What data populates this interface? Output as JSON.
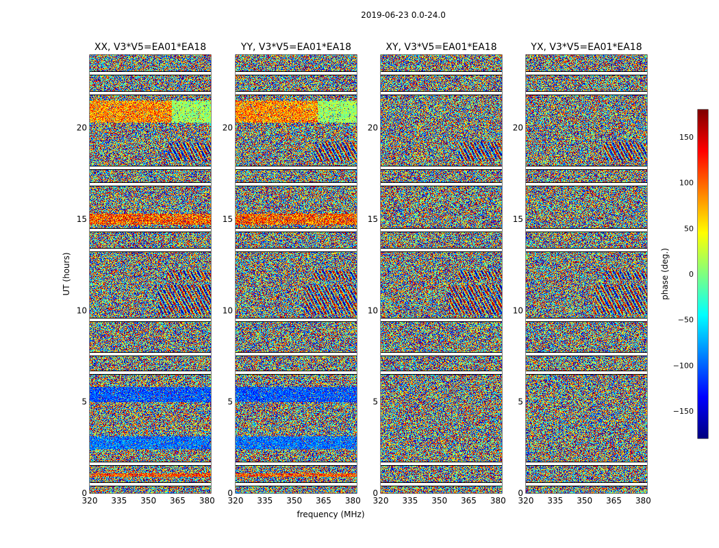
{
  "chart_data": {
    "type": "heatmap",
    "suptitle": "2019-06-23 0.0-24.0",
    "xlabel": "frequency (MHz)",
    "ylabel": "UT (hours)",
    "colorbar_label": "phase (deg.)",
    "xlim": [
      320,
      382
    ],
    "ylim": [
      0,
      24
    ],
    "xticks": [
      320,
      335,
      350,
      365,
      380
    ],
    "yticks": [
      0,
      5,
      10,
      15,
      20
    ],
    "clim": [
      -180,
      180
    ],
    "colorbar_ticks": [
      150,
      100,
      50,
      0,
      -50,
      -100,
      -150
    ],
    "colormap": "jet",
    "panels": [
      {
        "title": "XX, V3*V5=EA01*EA18",
        "pol": "XX"
      },
      {
        "title": "YY, V3*V5=EA01*EA18",
        "pol": "YY"
      },
      {
        "title": "XY, V3*V5=EA01*EA18",
        "pol": "XY"
      },
      {
        "title": "YX, V3*V5=EA01*EA18",
        "pol": "YX"
      }
    ],
    "flagged_gaps_hours": [
      0.5,
      1.6,
      6.6,
      7.6,
      9.5,
      13.3,
      14.4,
      16.9,
      17.8,
      21.9,
      23.0
    ],
    "coherent_phase_bands": [
      {
        "pols": [
          "XX",
          "YY"
        ],
        "ut_range": [
          20.3,
          21.5
        ],
        "phase_deg": [
          30,
          140
        ],
        "note": "yellow/orange band, greener above ~362 MHz"
      },
      {
        "pols": [
          "XX",
          "YY"
        ],
        "ut_range": [
          14.7,
          15.3
        ],
        "phase_deg": [
          40,
          170
        ],
        "note": "orange/red band"
      },
      {
        "pols": [
          "XX",
          "YY"
        ],
        "ut_range": [
          0.9,
          1.1
        ],
        "phase_deg": [
          60,
          160
        ],
        "note": "orange/red band"
      },
      {
        "pols": [
          "XX",
          "YY"
        ],
        "ut_range": [
          5.0,
          5.8
        ],
        "phase_deg": [
          -140,
          -70
        ],
        "note": "blue band"
      },
      {
        "pols": [
          "XX",
          "YY"
        ],
        "ut_range": [
          2.4,
          3.1
        ],
        "phase_deg": [
          -130,
          -60
        ],
        "note": "blue band"
      }
    ],
    "fringe_regions": [
      {
        "pols": [
          "XX",
          "YY",
          "XY",
          "YX"
        ],
        "ut_range": [
          11.7,
          12.2
        ],
        "freq_range": [
          360,
          382
        ]
      },
      {
        "pols": [
          "XX",
          "YY",
          "XY",
          "YX"
        ],
        "ut_range": [
          9.8,
          11.4
        ],
        "freq_range": [
          355,
          382
        ]
      },
      {
        "pols": [
          "XX",
          "YY",
          "XY",
          "YX"
        ],
        "ut_range": [
          18.2,
          19.2
        ],
        "freq_range": [
          360,
          382
        ]
      }
    ]
  }
}
